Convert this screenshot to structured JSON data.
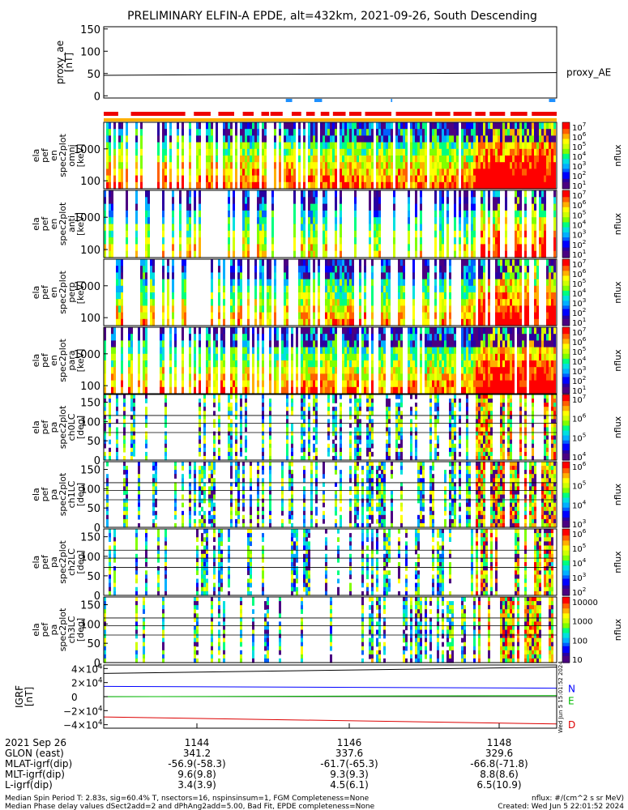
{
  "title": "PRELIMINARY ELFIN-A EPDE, alt=432km, 2021-09-26, South Descending",
  "chart_data": [
    {
      "type": "line",
      "name": "proxy_ae",
      "ylabel": "proxy_ae [nT]",
      "ylabel_lines": [
        "proxy_ae",
        "[nT]"
      ],
      "legend": "proxy_AE",
      "yticks": [
        "150",
        "100",
        "50",
        "0"
      ],
      "ylim": [
        -5,
        155
      ],
      "x": [
        0,
        1
      ],
      "values": [
        46,
        52
      ]
    },
    {
      "type": "heatmap",
      "name": "ela_pef_en_spec2plot_omni",
      "ylabel_lines": [
        "ela",
        "pef",
        "en",
        "spec2plot",
        "omni",
        "[keV]"
      ],
      "yticks": [
        "1000",
        "100"
      ],
      "scale": "log",
      "colorbar_label": "nflux",
      "colorbar_ticks": [
        "10^7",
        "10^6",
        "10^5",
        "10^4",
        "10^3",
        "10^2",
        "10^1"
      ]
    },
    {
      "type": "heatmap",
      "name": "ela_pef_en_spec2plot_anti",
      "ylabel_lines": [
        "ela",
        "pef",
        "en",
        "spec2plot",
        "anti",
        "[keV]"
      ],
      "yticks": [
        "1000",
        "100"
      ],
      "scale": "log",
      "colorbar_label": "nflux",
      "colorbar_ticks": [
        "10^7",
        "10^6",
        "10^5",
        "10^4",
        "10^3",
        "10^2",
        "10^1"
      ]
    },
    {
      "type": "heatmap",
      "name": "ela_pef_en_spec2plot_perp",
      "ylabel_lines": [
        "ela",
        "pef",
        "en",
        "spec2plot",
        "perp",
        "[keV]"
      ],
      "yticks": [
        "1000",
        "100"
      ],
      "scale": "log",
      "colorbar_label": "nflux",
      "colorbar_ticks": [
        "10^7",
        "10^6",
        "10^5",
        "10^4",
        "10^3",
        "10^2",
        "10^1"
      ]
    },
    {
      "type": "heatmap",
      "name": "ela_pef_en_spec2plot_para",
      "ylabel_lines": [
        "ela",
        "pef",
        "en",
        "spec2plot",
        "para",
        "[keV]"
      ],
      "yticks": [
        "1000",
        "100"
      ],
      "scale": "log",
      "colorbar_label": "nflux",
      "colorbar_ticks": [
        "10^7",
        "10^6",
        "10^5",
        "10^4",
        "10^3",
        "10^2",
        "10^1"
      ]
    },
    {
      "type": "heatmap",
      "name": "ela_pef_pa_spec2plot_ch0LC",
      "ylabel_lines": [
        "ela",
        "pef",
        "pa",
        "spec2plot",
        "ch0LC",
        "[deg]"
      ],
      "yticks": [
        "150",
        "100",
        "50",
        "0"
      ],
      "colorbar_label": "nflux",
      "colorbar_ticks": [
        "10^7",
        "10^6",
        "10^5",
        "10^4"
      ]
    },
    {
      "type": "heatmap",
      "name": "ela_pef_pa_spec2plot_ch1LC",
      "ylabel_lines": [
        "ela",
        "pef",
        "pa",
        "spec2plot",
        "ch1LC",
        "[deg]"
      ],
      "yticks": [
        "150",
        "100",
        "50",
        "0"
      ],
      "colorbar_label": "nflux",
      "colorbar_ticks": [
        "10^6",
        "10^5",
        "10^4",
        "10^3"
      ]
    },
    {
      "type": "heatmap",
      "name": "ela_pef_pa_spec2plot_ch2LC",
      "ylabel_lines": [
        "ela",
        "pef",
        "pa",
        "spec2plot",
        "ch2LC",
        "[deg]"
      ],
      "yticks": [
        "150",
        "100",
        "50",
        "0"
      ],
      "colorbar_label": "nflux",
      "colorbar_ticks": [
        "10^6",
        "10^5",
        "10^4",
        "10^3",
        "10^2"
      ]
    },
    {
      "type": "heatmap",
      "name": "ela_pef_pa_spec2plot_ch3LC",
      "ylabel_lines": [
        "ela",
        "pef",
        "pa",
        "spec2plot",
        "ch3LC",
        "[deg]"
      ],
      "yticks": [
        "150",
        "100",
        "50",
        "0"
      ],
      "colorbar_label": "nflux",
      "colorbar_ticks": [
        "10000",
        "1000",
        "100",
        "10"
      ]
    },
    {
      "type": "line",
      "name": "igrf",
      "ylabel_lines": [
        "IGRF",
        "[nT]"
      ],
      "yticks": [
        "4×10^4",
        "2×10^4",
        "0",
        "−2×10^4",
        "−4×10^4"
      ],
      "ylim": [
        -45000,
        45000
      ],
      "series": [
        {
          "name": "N",
          "color": "#0000ff",
          "values": [
            14500,
            12000
          ]
        },
        {
          "name": "E",
          "color": "#00bb00",
          "values": [
            -200,
            1500
          ]
        },
        {
          "name": "D",
          "color": "#dd0000",
          "values": [
            -29000,
            -39000
          ]
        },
        {
          "name": "",
          "color": "#000000",
          "values": [
            33000,
            42000
          ]
        }
      ]
    }
  ],
  "bars": {
    "blue_segments": [
      [
        0.402,
        0.416
      ],
      [
        0.465,
        0.482
      ],
      [
        0.634,
        0.637
      ],
      [
        0.983,
        0.997
      ]
    ],
    "red_segments": [
      [
        0.0,
        0.032
      ],
      [
        0.06,
        0.18
      ],
      [
        0.199,
        0.236
      ],
      [
        0.253,
        0.288
      ],
      [
        0.307,
        0.331
      ],
      [
        0.348,
        0.365
      ],
      [
        0.368,
        0.395
      ],
      [
        0.415,
        0.436
      ],
      [
        0.447,
        0.466
      ],
      [
        0.479,
        0.498
      ],
      [
        0.506,
        0.534
      ],
      [
        0.542,
        0.569
      ],
      [
        0.577,
        0.635
      ],
      [
        0.645,
        0.725
      ],
      [
        0.732,
        0.765
      ],
      [
        0.772,
        0.812
      ],
      [
        0.82,
        0.843
      ],
      [
        0.852,
        0.886
      ],
      [
        0.898,
        0.935
      ],
      [
        0.945,
        1.0
      ]
    ]
  },
  "axis": {
    "time_ticks": [
      "1144",
      "1146",
      "1148"
    ],
    "rows": [
      {
        "label": "2021 Sep 26",
        "values": [
          "1144",
          "1146",
          "1148"
        ]
      },
      {
        "label": "GLON (east)",
        "values": [
          "341.2",
          "337.6",
          "329.6"
        ]
      },
      {
        "label": "MLAT-igrf(dip)",
        "values": [
          "-56.9(-58.3)",
          "-61.7(-65.3)",
          "-66.8(-71.8)"
        ]
      },
      {
        "label": "MLT-igrf(dip)",
        "values": [
          "9.6(9.8)",
          "9.3(9.3)",
          "8.8(8.6)"
        ]
      },
      {
        "label": "L-igrf(dip)",
        "values": [
          "3.4(3.9)",
          "4.5(6.1)",
          "6.5(10.9)"
        ]
      }
    ]
  },
  "footer": {
    "line1": "Median Spin Period T: 2.83s, sig=60.4% T, nsectors=16, nspinsinsum=1, FGM Completeness=None",
    "line2": "Median Phase delay values dSect2add=2 and dPhAng2add=5.00, Bad Fit, EPDE completeness=None",
    "units": "nflux: #/(cm^2 s sr MeV)",
    "created": "Created: Wed Jun  5 22:01:52 2024"
  },
  "stamp": "Wed Jun  5 15:01:52 2024"
}
